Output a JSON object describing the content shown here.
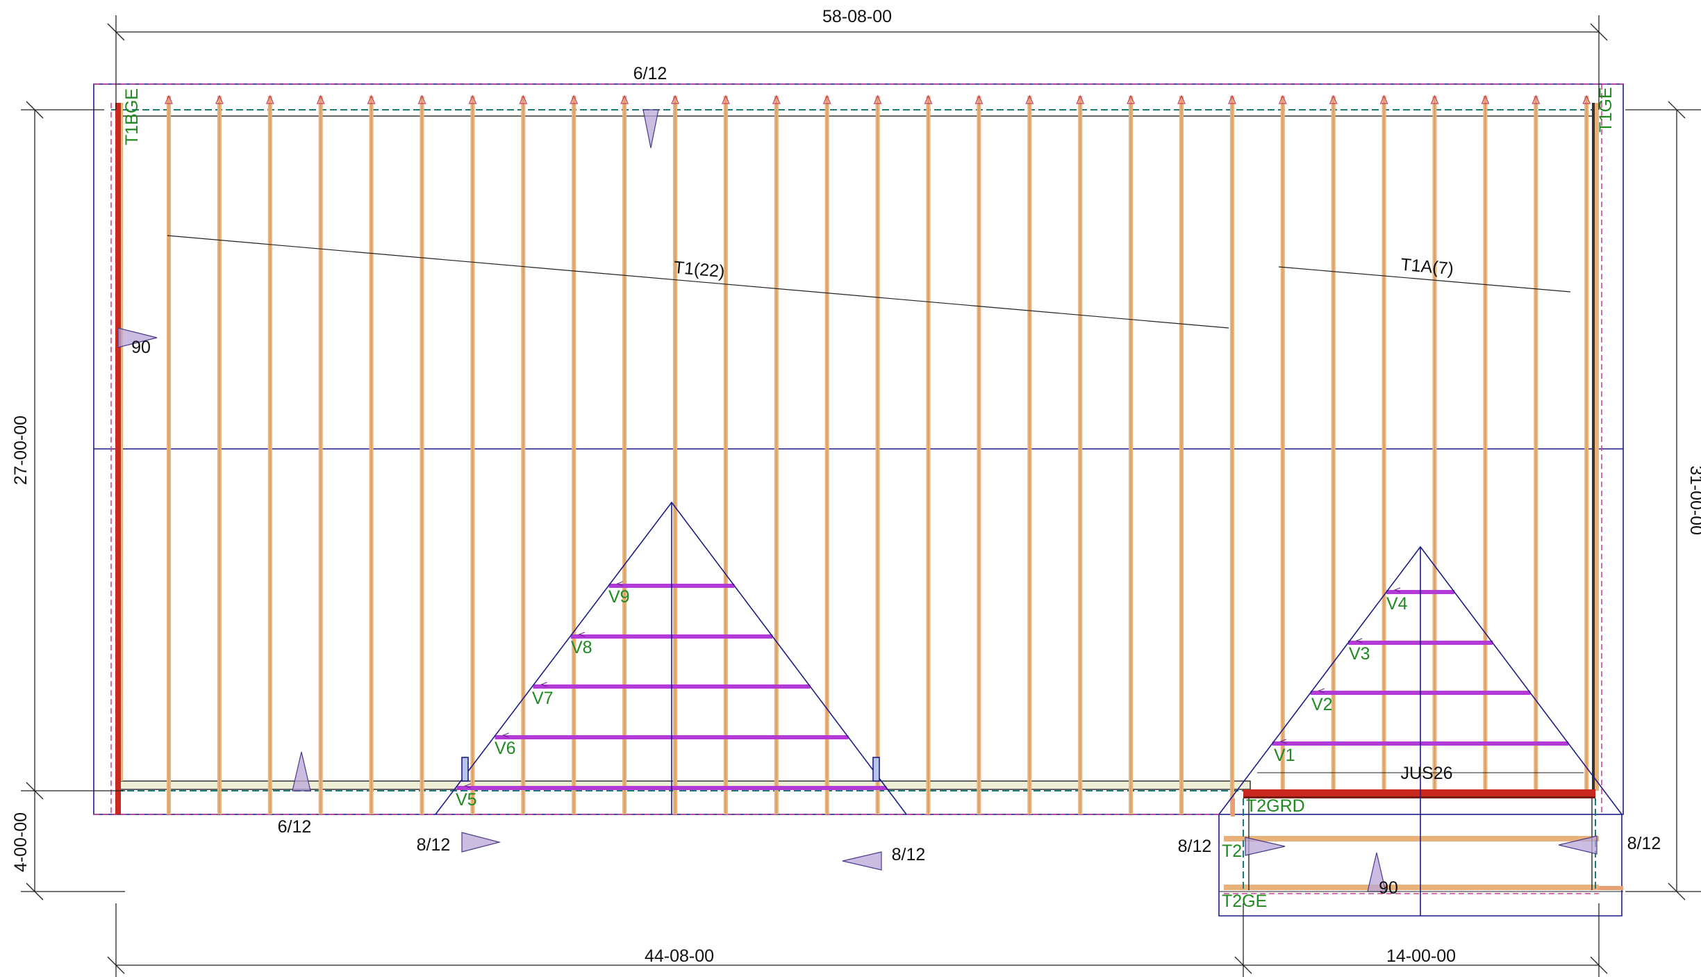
{
  "dimensions": {
    "top": "58-08-00",
    "left": "27-00-00",
    "left_bottom": "4-00-00",
    "right": "31-00-00",
    "bottom_left": "44-08-00",
    "bottom_right": "14-00-00"
  },
  "pitches": {
    "top": "6/12",
    "bottom_left": "6/12",
    "valley_left": "8/12",
    "valley_mid": "8/12",
    "ext_left": "8/12",
    "ext_right": "8/12"
  },
  "angles": {
    "left": "90",
    "bottom": "90"
  },
  "truss_groups": {
    "main": "T1(22)",
    "secondary": "T1A(7)"
  },
  "truss_labels": {
    "T1BGE": "T1BGE",
    "T1GE": "T1GE",
    "T2GRD": "T2GRD",
    "T2": "T2",
    "T2GE": "T2GE",
    "V1": "V1",
    "V2": "V2",
    "V3": "V3",
    "V4": "V4",
    "V5": "V5",
    "V6": "V6",
    "V7": "V7",
    "V8": "V8",
    "V9": "V9"
  },
  "hanger": "JUS26",
  "colors": {
    "truss": "#e8b27a",
    "truss_core": "#d39459",
    "valley": "#b33ad6",
    "girder": "#c8281e",
    "outline": "#1c1c8c",
    "label_green": "#1f8a1f",
    "marker": "#7d4aa8",
    "plate": "#efeed6"
  }
}
